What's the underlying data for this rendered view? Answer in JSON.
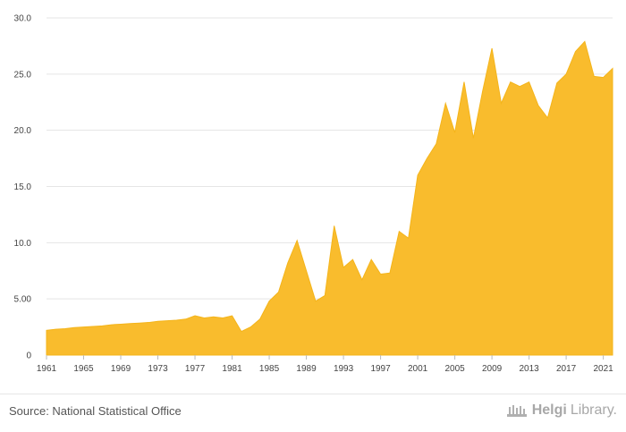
{
  "chart_data": {
    "type": "area",
    "title": "",
    "xlabel": "",
    "ylabel": "",
    "x": [
      1961,
      1962,
      1963,
      1964,
      1965,
      1966,
      1967,
      1968,
      1969,
      1970,
      1971,
      1972,
      1973,
      1974,
      1975,
      1976,
      1977,
      1978,
      1979,
      1980,
      1981,
      1982,
      1983,
      1984,
      1985,
      1986,
      1987,
      1988,
      1989,
      1990,
      1991,
      1992,
      1993,
      1994,
      1995,
      1996,
      1997,
      1998,
      1999,
      2000,
      2001,
      2002,
      2003,
      2004,
      2005,
      2006,
      2007,
      2008,
      2009,
      2010,
      2011,
      2012,
      2013,
      2014,
      2015,
      2016,
      2017,
      2018,
      2019,
      2020,
      2021,
      2022
    ],
    "series": [
      {
        "values": [
          2.2,
          2.3,
          2.35,
          2.45,
          2.5,
          2.55,
          2.6,
          2.7,
          2.75,
          2.8,
          2.85,
          2.9,
          3.0,
          3.05,
          3.1,
          3.2,
          3.5,
          3.3,
          3.4,
          3.3,
          3.5,
          2.1,
          2.5,
          3.2,
          4.8,
          5.6,
          8.2,
          10.2,
          7.5,
          4.8,
          5.3,
          11.5,
          7.8,
          8.5,
          6.7,
          8.5,
          7.2,
          7.3,
          11.0,
          10.4,
          16.0,
          17.5,
          18.8,
          22.4,
          19.8,
          24.3,
          19.3,
          23.5,
          27.3,
          22.4,
          24.3,
          23.9,
          24.3,
          22.2,
          21.1,
          24.2,
          25.0,
          27.0,
          27.9,
          24.8,
          24.7,
          25.5
        ],
        "color": "#f9bc2d"
      }
    ],
    "xticks": [
      "1961",
      "1965",
      "1969",
      "1973",
      "1977",
      "1981",
      "1985",
      "1989",
      "1993",
      "1997",
      "2001",
      "2005",
      "2009",
      "2013",
      "2017",
      "2021"
    ],
    "yticks": [
      "0",
      "5.00",
      "10.0",
      "15.0",
      "20.0",
      "25.0",
      "30.0"
    ],
    "ylim": [
      0,
      30
    ],
    "grid": true,
    "colors": {
      "fill": "#f9bc2d",
      "stroke": "#f4b41a",
      "grid": "#e5e5e5"
    }
  },
  "footer": {
    "source": "Source: National Statistical Office",
    "brand_part1": "Helgi",
    "brand_part2": "Library."
  }
}
